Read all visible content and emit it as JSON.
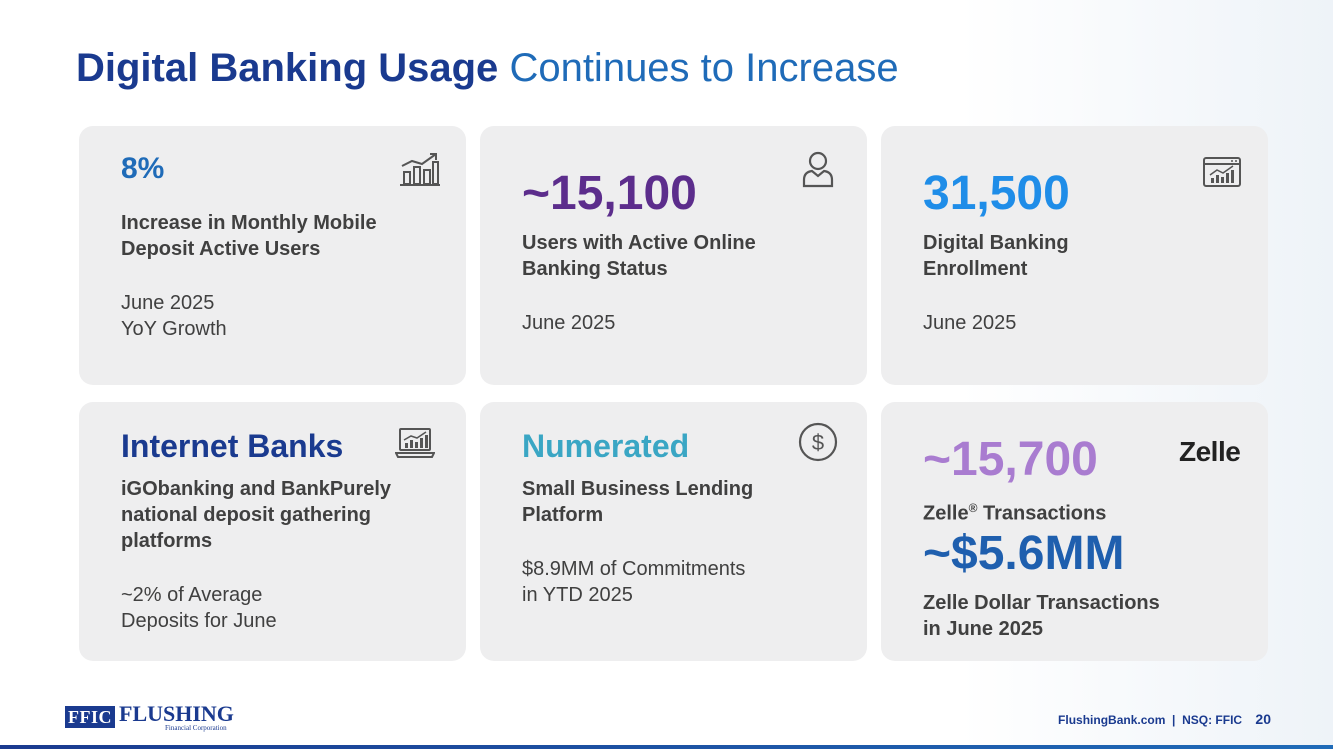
{
  "header": {
    "title_bold": "Digital Banking Usage",
    "title_light": "Continues to Increase"
  },
  "cards": [
    {
      "big": "8%",
      "label": [
        "Increase in Monthly Mobile",
        "Deposit Active Users"
      ],
      "sub": [
        "June 2025",
        "YoY Growth"
      ],
      "icon": "growth-chart-icon"
    },
    {
      "big": "~15,100",
      "label": [
        "Users with Active Online",
        "Banking Status"
      ],
      "sub": [
        "June 2025"
      ],
      "icon": "user-icon"
    },
    {
      "big": "31,500",
      "label": [
        "Digital Banking",
        "Enrollment"
      ],
      "sub": [
        "June 2025"
      ],
      "icon": "browser-analytics-icon"
    },
    {
      "big": "Internet Banks",
      "label": [
        "iGObanking and BankPurely",
        "national deposit gathering",
        "platforms"
      ],
      "sub": [
        "~2% of Average",
        "Deposits for June"
      ],
      "icon": "laptop-chart-icon"
    },
    {
      "big": "Numerated",
      "label": [
        "Small Business Lending",
        "Platform"
      ],
      "sub": [
        "$8.9MM of Commitments",
        "in YTD 2025"
      ],
      "icon": "dollar-circle-icon"
    },
    {
      "big": "~15,700",
      "label": [
        "Zelle",
        "®",
        " Transactions"
      ],
      "big2": "~$5.6MM",
      "label2": [
        "Zelle Dollar Transactions",
        "in June 2025"
      ],
      "logo_text": "Zelle",
      "icon": "zelle-logo"
    }
  ],
  "footer": {
    "logo_ffic": "FFIC",
    "logo_name": "FLUSHING",
    "logo_tag": "Financial Corporation",
    "site": "FlushingBank.com  |  NSQ: FFIC",
    "page": "20"
  },
  "colors": {
    "navy": "#1a3a8f",
    "purple": "#5c2d8c",
    "bright_blue": "#1f8de8",
    "teal": "#3aa6c4",
    "lavender": "#a97cd0",
    "mid_blue": "#1f5fae"
  }
}
